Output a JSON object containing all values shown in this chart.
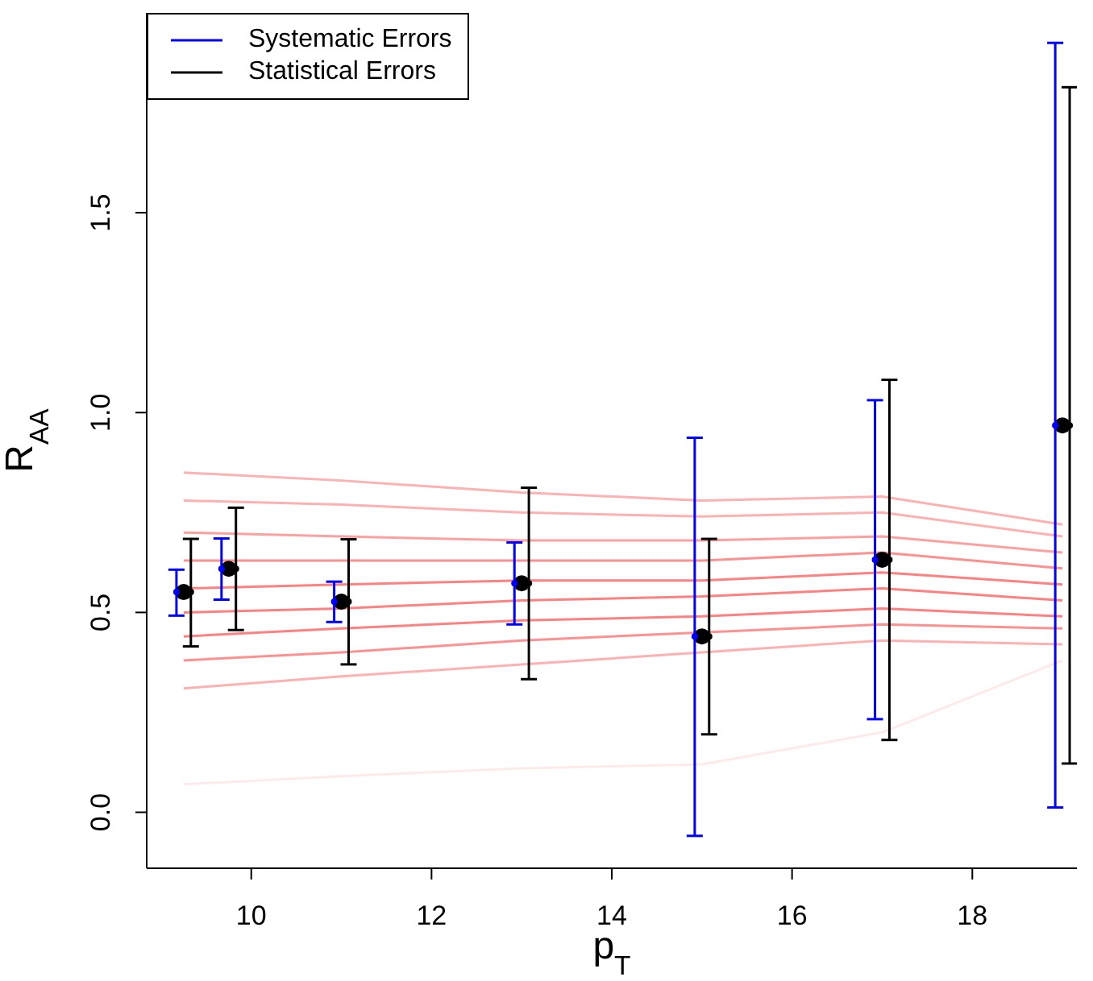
{
  "chart_data": {
    "type": "scatter",
    "xlabel": "p$_{T}$",
    "ylabel": "R$_{AA}$",
    "xlim": [
      8.84,
      19.16
    ],
    "xticks": [
      10,
      12,
      14,
      16,
      18
    ],
    "ylim": [
      -0.14,
      2.0
    ],
    "yticks": [
      {
        "value": 0,
        "label": "0.0"
      },
      0.5,
      {
        "value": 1,
        "label": "1.0"
      },
      1.5
    ],
    "grid": false,
    "legend": "top left",
    "series": [
      {
        "type": "line",
        "marker": "none",
        "color": "#ffb0b0",
        "x": [
          9.25,
          11,
          13,
          15,
          17,
          19
        ],
        "values": [
          0.85,
          0.83,
          0.8,
          0.78,
          0.79,
          0.72
        ]
      },
      {
        "type": "line",
        "marker": "none",
        "color": "#ffb0b0",
        "x": [
          9.25,
          11,
          13,
          15,
          17,
          19
        ],
        "values": [
          0.78,
          0.77,
          0.75,
          0.74,
          0.75,
          0.69
        ]
      },
      {
        "type": "line",
        "marker": "none",
        "color": "#ffa0a0",
        "x": [
          9.25,
          11,
          13,
          15,
          17,
          19
        ],
        "values": [
          0.7,
          0.69,
          0.68,
          0.68,
          0.69,
          0.65
        ]
      },
      {
        "type": "line",
        "marker": "none",
        "color": "#ff9090",
        "x": [
          9.25,
          11,
          13,
          15,
          17,
          19
        ],
        "values": [
          0.63,
          0.63,
          0.63,
          0.63,
          0.65,
          0.61
        ]
      },
      {
        "type": "line",
        "marker": "none",
        "color": "#ff8080",
        "x": [
          9.25,
          11,
          13,
          15,
          17,
          19
        ],
        "values": [
          0.56,
          0.57,
          0.58,
          0.58,
          0.6,
          0.57
        ]
      },
      {
        "type": "line",
        "marker": "none",
        "color": "#ff8080",
        "x": [
          9.25,
          11,
          13,
          15,
          17,
          19
        ],
        "values": [
          0.5,
          0.51,
          0.53,
          0.54,
          0.56,
          0.53
        ]
      },
      {
        "type": "line",
        "marker": "none",
        "color": "#ff8080",
        "x": [
          9.25,
          11,
          13,
          15,
          17,
          19
        ],
        "values": [
          0.44,
          0.46,
          0.48,
          0.49,
          0.51,
          0.49
        ]
      },
      {
        "type": "line",
        "marker": "none",
        "color": "#ff9090",
        "x": [
          9.25,
          11,
          13,
          15,
          17,
          19
        ],
        "values": [
          0.38,
          0.4,
          0.43,
          0.45,
          0.47,
          0.46
        ]
      },
      {
        "type": "line",
        "marker": "none",
        "color": "#ffb0b0",
        "x": [
          9.25,
          11,
          13,
          15,
          17,
          19
        ],
        "values": [
          0.31,
          0.34,
          0.37,
          0.4,
          0.43,
          0.42
        ]
      },
      {
        "type": "line",
        "marker": "none",
        "color": "#ffeaea",
        "x": [
          9.25,
          11,
          13,
          15,
          17,
          19
        ],
        "values": [
          0.07,
          0.09,
          0.11,
          0.12,
          0.2,
          0.38
        ]
      },
      {
        "name": "Systematic Errors",
        "color": "#0000ff",
        "x": [
          9.17,
          9.67,
          10.92,
          12.92,
          14.92,
          16.92,
          18.92
        ],
        "values": [
          0.551,
          0.609,
          0.527,
          0.573,
          0.44,
          0.632,
          0.968
        ],
        "errors": [
          [
            0.492,
            0.607
          ],
          [
            0.532,
            0.685
          ],
          [
            0.476,
            0.577
          ],
          [
            0.47,
            0.675
          ],
          [
            -0.059,
            0.937
          ],
          [
            0.233,
            1.031
          ],
          [
            0.012,
            1.925
          ]
        ]
      },
      {
        "name": "Statistical Errors",
        "color": "#000000",
        "x": [
          9.33,
          9.83,
          11.08,
          13.08,
          15.08,
          17.08,
          19.08
        ],
        "values": [
          0.551,
          0.609,
          0.527,
          0.573,
          0.44,
          0.632,
          0.968
        ],
        "errors": [
          [
            0.415,
            0.684
          ],
          [
            0.456,
            0.762
          ],
          [
            0.37,
            0.683
          ],
          [
            0.333,
            0.812
          ],
          [
            0.195,
            0.684
          ],
          [
            0.181,
            1.082
          ],
          [
            0.122,
            1.814
          ]
        ]
      },
      {
        "marker": "circle",
        "color": "#000000",
        "x": [
          9.25,
          9.75,
          11,
          13,
          15,
          17,
          19
        ],
        "values": [
          0.551,
          0.609,
          0.527,
          0.573,
          0.44,
          0.632,
          0.968
        ]
      }
    ]
  }
}
